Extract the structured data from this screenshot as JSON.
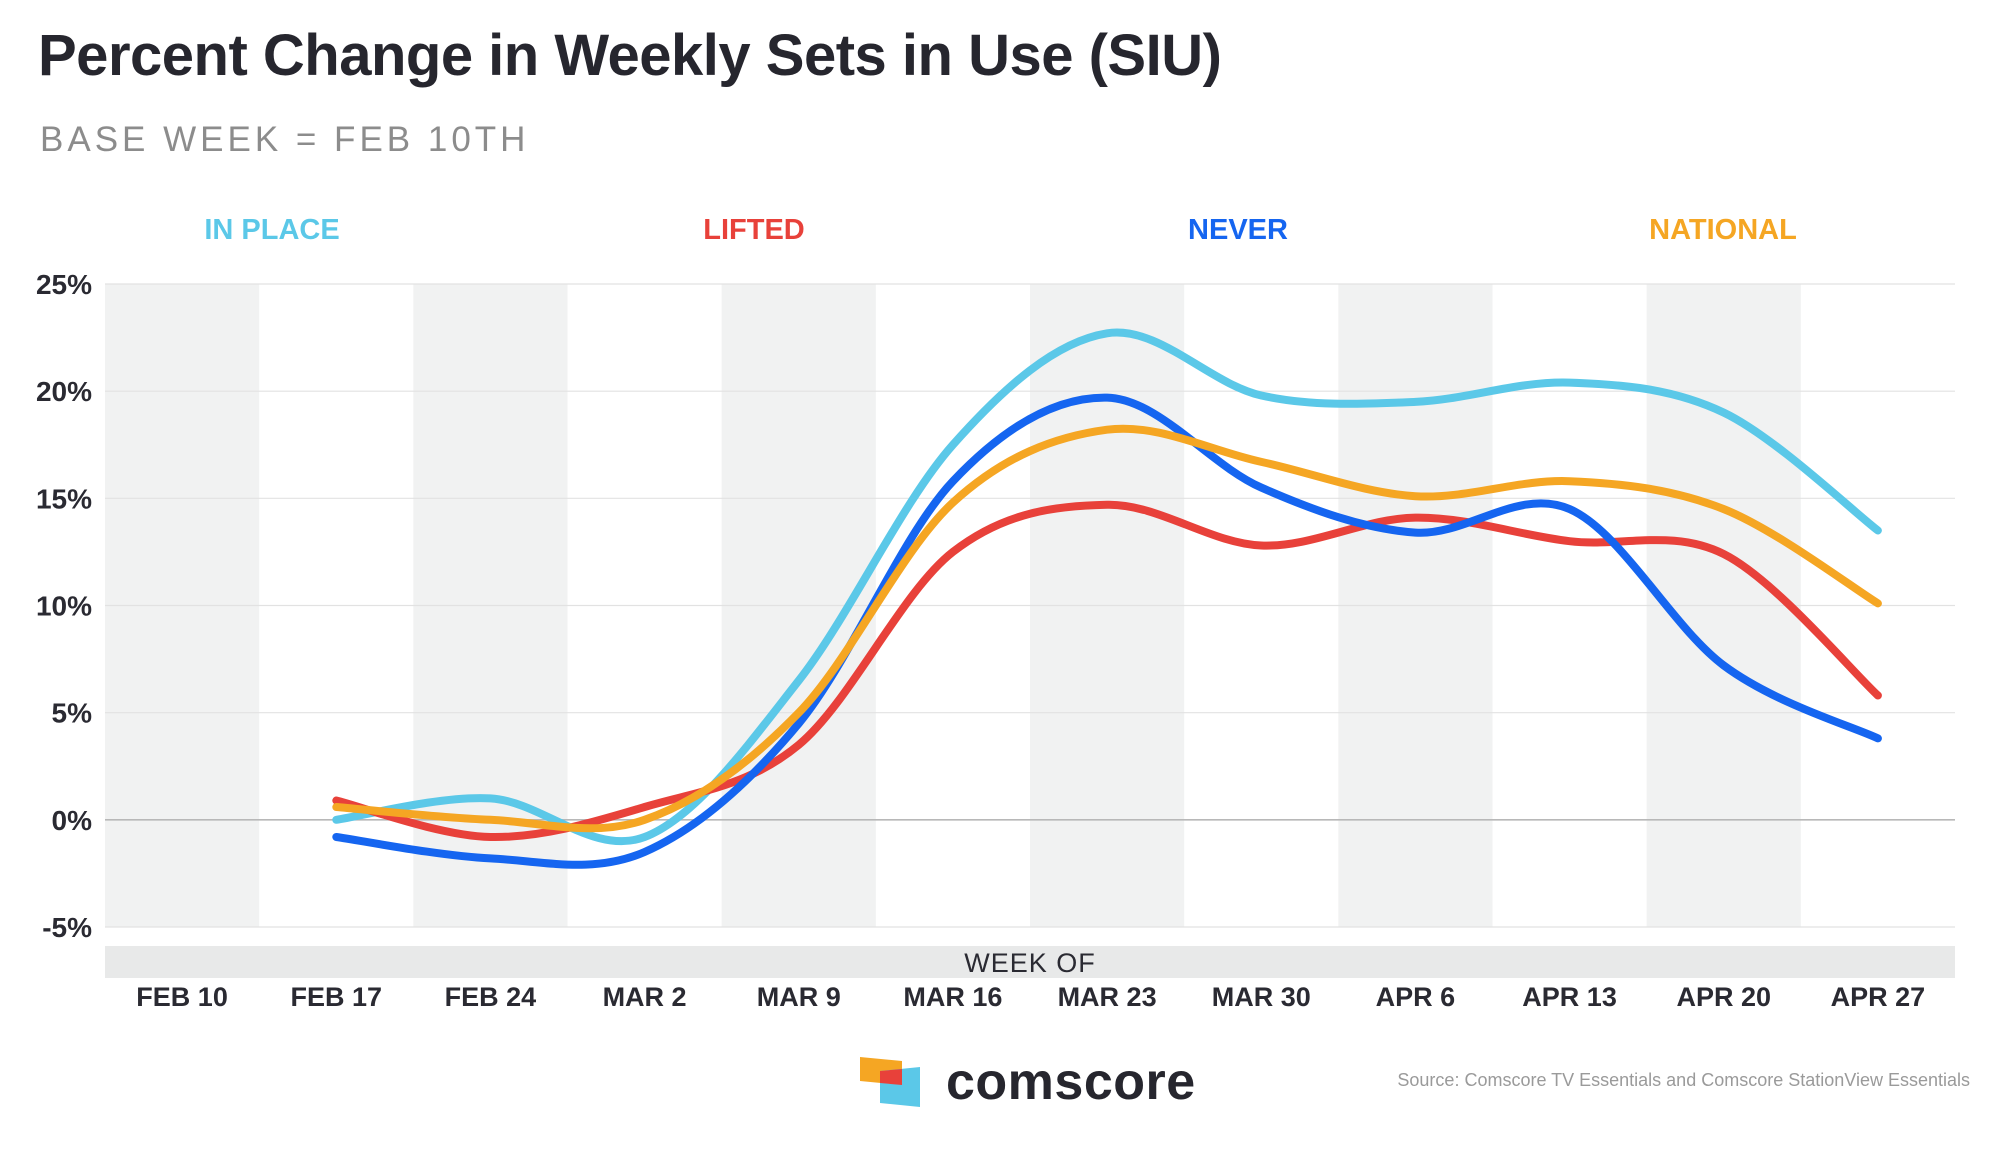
{
  "chart_data": {
    "type": "line",
    "title": "Percent Change in Weekly Sets in Use (SIU)",
    "subtitle": "BASE WEEK = FEB 10TH",
    "xlabel": "WEEK OF",
    "ylabel": "",
    "categories": [
      "FEB 10",
      "FEB 17",
      "FEB 24",
      "MAR 2",
      "MAR 9",
      "MAR 16",
      "MAR 23",
      "MAR 30",
      "APR 6",
      "APR 13",
      "APR 20",
      "APR 27"
    ],
    "y_ticks": [
      "25%",
      "20%",
      "15%",
      "10%",
      "5%",
      "0%",
      "-5%"
    ],
    "ylim": [
      -5,
      25
    ],
    "legend_position": "top",
    "series": [
      {
        "name": "IN PLACE",
        "color": "#5bc8e8",
        "values": [
          null,
          0.0,
          1.0,
          -0.8,
          6.5,
          17.5,
          22.7,
          19.8,
          19.5,
          20.4,
          19.0,
          13.5
        ]
      },
      {
        "name": "LIFTED",
        "color": "#e8413a",
        "values": [
          null,
          0.9,
          -0.8,
          0.6,
          3.5,
          12.5,
          14.7,
          12.8,
          14.1,
          13.0,
          12.4,
          5.8
        ]
      },
      {
        "name": "NEVER",
        "color": "#1565f0",
        "values": [
          null,
          -0.8,
          -1.8,
          -1.5,
          4.5,
          15.8,
          19.7,
          15.5,
          13.4,
          14.5,
          7.2,
          3.8
        ]
      },
      {
        "name": "NATIONAL",
        "color": "#f5a623",
        "values": [
          null,
          0.6,
          0.0,
          0.0,
          5.0,
          14.8,
          18.2,
          16.7,
          15.1,
          15.8,
          14.5,
          10.1
        ]
      }
    ]
  },
  "brand": {
    "name": "comscore"
  },
  "source": "Source: Comscore TV Essentials and Comscore StationView Essentials"
}
